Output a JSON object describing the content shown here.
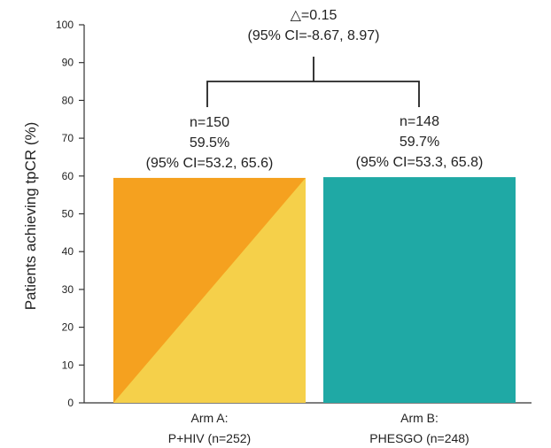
{
  "chart_data": {
    "type": "bar",
    "ylabel": "Patients achieving tpCR (%)",
    "ylim": [
      0,
      100
    ],
    "yticks": [
      0,
      10,
      20,
      30,
      40,
      50,
      60,
      70,
      80,
      90,
      100
    ],
    "grid": false,
    "categories": [
      {
        "line1": "Arm A:",
        "line2": "P+HIV (n=252)"
      },
      {
        "line1": "Arm B:",
        "line2": "PHESGO (n=248)"
      }
    ],
    "values": [
      59.5,
      59.7
    ],
    "bar_labels": [
      {
        "n": "n=150",
        "pct": "59.5%",
        "ci": "(95% CI=53.2, 65.6)"
      },
      {
        "n": "n=148",
        "pct": "59.7%",
        "ci": "(95% CI=53.3, 65.8)"
      }
    ],
    "colors": {
      "arm_a_primary": "#f5a11f",
      "arm_a_secondary": "#f5d04a",
      "arm_b": "#1fa9a5",
      "axis": "#333333"
    },
    "difference": {
      "line1": "△=0.15",
      "line2": "(95% CI=-8.67, 8.97)"
    }
  }
}
